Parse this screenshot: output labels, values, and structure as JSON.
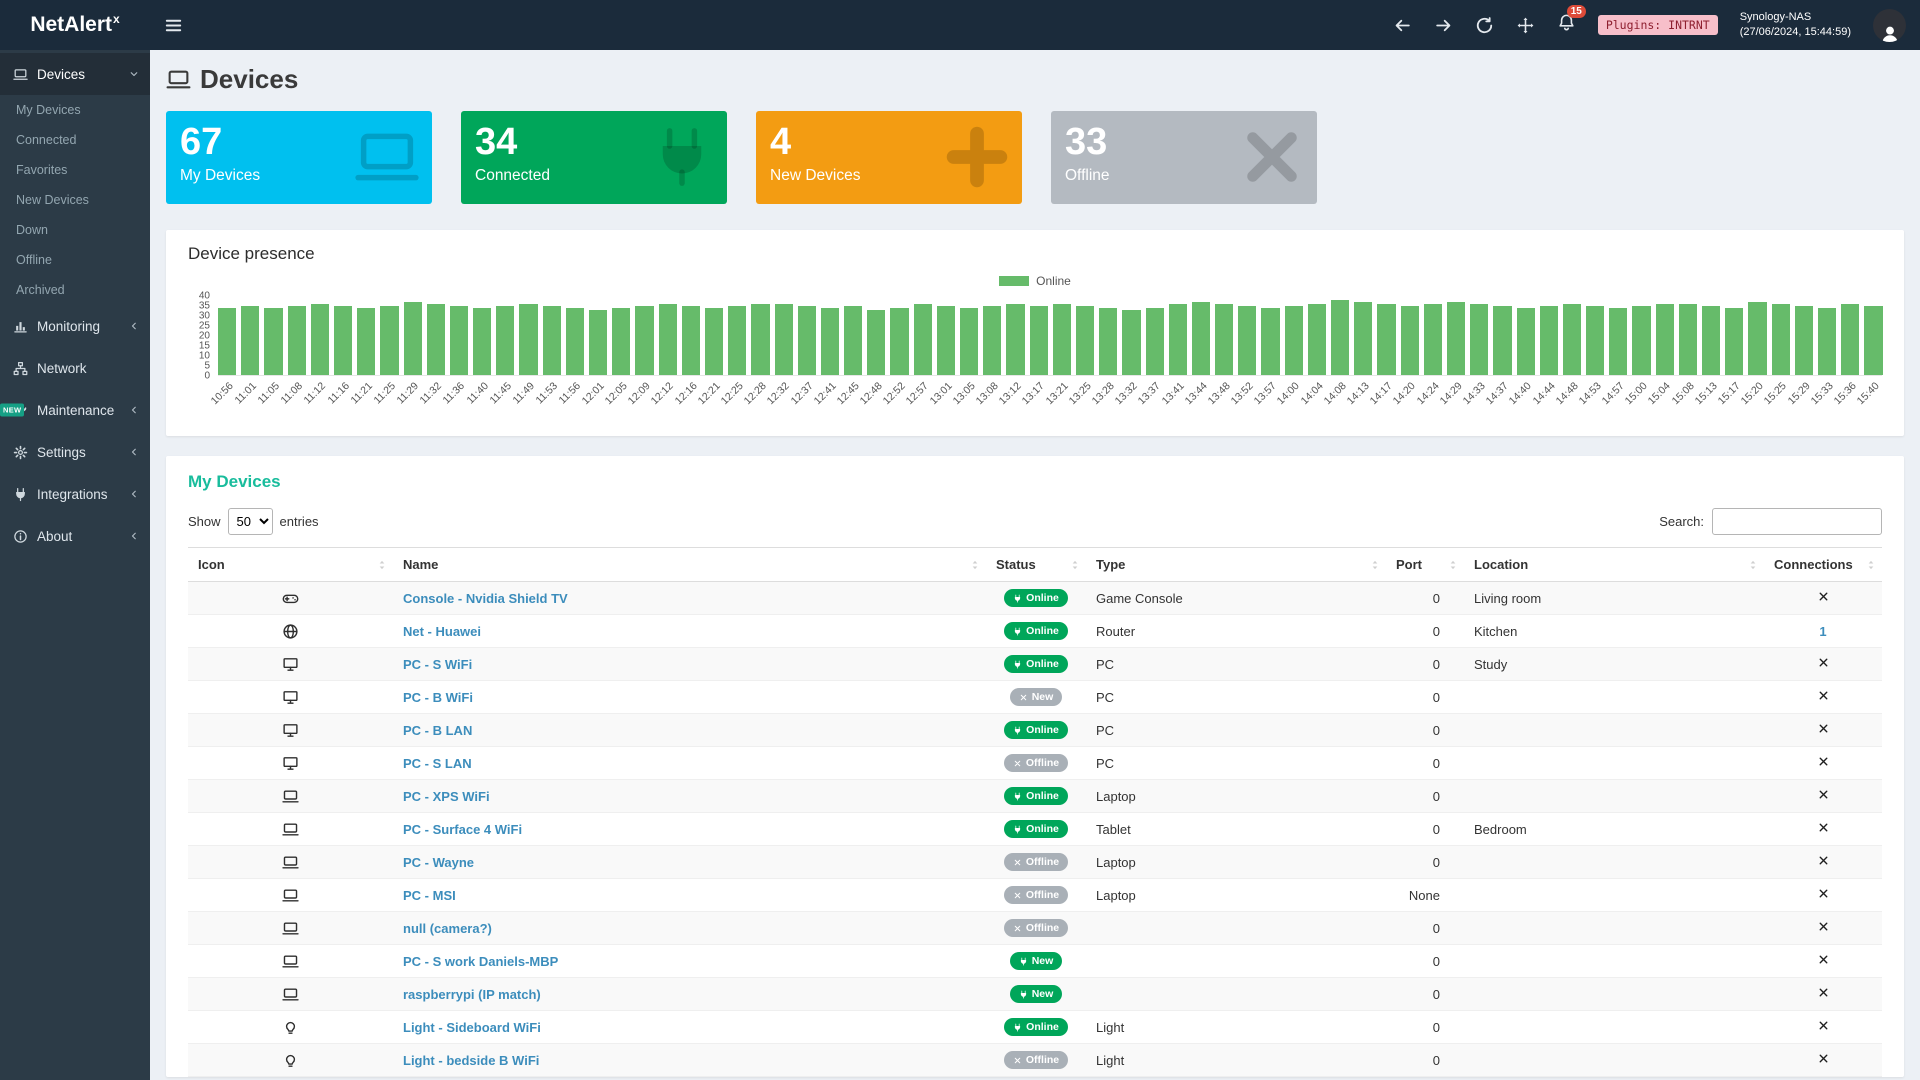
{
  "topbar": {
    "logo_text": "NetAlert",
    "logo_sup": "x",
    "notifications_count": "15",
    "plugins_badge": "Plugins: INTRNT",
    "nas_name": "Synology-NAS",
    "nas_time": "(27/06/2024, 15:44:59)"
  },
  "sidebar": {
    "items": [
      {
        "label": "Devices",
        "icon": "laptop",
        "chevron": "down",
        "active": true,
        "type": "main"
      },
      {
        "label": "My Devices",
        "type": "sub"
      },
      {
        "label": "Connected",
        "type": "sub"
      },
      {
        "label": "Favorites",
        "type": "sub"
      },
      {
        "label": "New Devices",
        "type": "sub"
      },
      {
        "label": "Down",
        "type": "sub"
      },
      {
        "label": "Offline",
        "type": "sub"
      },
      {
        "label": "Archived",
        "type": "sub"
      },
      {
        "label": "Monitoring",
        "icon": "chart",
        "chevron": "left",
        "type": "main"
      },
      {
        "label": "Network",
        "icon": "network",
        "type": "main"
      },
      {
        "label": "Maintenance",
        "icon": "wrench",
        "chevron": "left",
        "type": "main",
        "badge": "NEW"
      },
      {
        "label": "Settings",
        "icon": "gear",
        "chevron": "left",
        "type": "main"
      },
      {
        "label": "Integrations",
        "icon": "plug",
        "chevron": "left",
        "type": "main"
      },
      {
        "label": "About",
        "icon": "info",
        "chevron": "left",
        "type": "main"
      }
    ]
  },
  "page": {
    "title": "Devices"
  },
  "summary_boxes": [
    {
      "value": "67",
      "label": "My Devices",
      "color": "#00c0ef",
      "icon": "laptop"
    },
    {
      "value": "34",
      "label": "Connected",
      "color": "#00a65a",
      "icon": "plug"
    },
    {
      "value": "4",
      "label": "New Devices",
      "color": "#f39c12",
      "icon": "plus"
    },
    {
      "value": "33",
      "label": "Offline",
      "color": "#b4bac1",
      "icon": "x"
    }
  ],
  "presence_panel": {
    "title": "Device presence",
    "legend": "Online"
  },
  "chart_data": {
    "type": "bar",
    "title": "Device presence",
    "legend": [
      "Online"
    ],
    "legend_position": "top-center",
    "bar_color": "#66bb6a",
    "grid": false,
    "ylim": [
      0,
      40
    ],
    "yticks": [
      40,
      35,
      30,
      25,
      20,
      15,
      10,
      5,
      0
    ],
    "categories": [
      "10:56",
      "11:01",
      "11:05",
      "11:08",
      "11:12",
      "11:16",
      "11:21",
      "11:25",
      "11:29",
      "11:32",
      "11:36",
      "11:40",
      "11:45",
      "11:49",
      "11:53",
      "11:56",
      "12:01",
      "12:05",
      "12:09",
      "12:12",
      "12:16",
      "12:21",
      "12:25",
      "12:28",
      "12:32",
      "12:37",
      "12:41",
      "12:45",
      "12:48",
      "12:52",
      "12:57",
      "13:01",
      "13:05",
      "13:08",
      "13:12",
      "13:17",
      "13:21",
      "13:25",
      "13:28",
      "13:32",
      "13:37",
      "13:41",
      "13:44",
      "13:48",
      "13:52",
      "13:57",
      "14:00",
      "14:04",
      "14:08",
      "14:13",
      "14:17",
      "14:20",
      "14:24",
      "14:29",
      "14:33",
      "14:37",
      "14:40",
      "14:44",
      "14:48",
      "14:53",
      "14:57",
      "15:00",
      "15:04",
      "15:08",
      "15:13",
      "15:17",
      "15:20",
      "15:25",
      "15:29",
      "15:33",
      "15:36",
      "15:40"
    ],
    "values": [
      34,
      35,
      34,
      35,
      36,
      35,
      34,
      35,
      37,
      36,
      35,
      34,
      35,
      36,
      35,
      34,
      33,
      34,
      35,
      36,
      35,
      34,
      35,
      36,
      36,
      35,
      34,
      35,
      33,
      34,
      36,
      35,
      34,
      35,
      36,
      35,
      36,
      35,
      34,
      33,
      34,
      36,
      37,
      36,
      35,
      34,
      35,
      36,
      38,
      37,
      36,
      35,
      36,
      37,
      36,
      35,
      34,
      35,
      36,
      35,
      34,
      35,
      36,
      36,
      35,
      34,
      37,
      36,
      35,
      34,
      36,
      35
    ]
  },
  "devices_panel": {
    "title": "My Devices",
    "show_label": "Show",
    "entries_label": "entries",
    "entries_options": [
      "50"
    ],
    "entries_selected": "50",
    "search_label": "Search:",
    "columns": [
      "Icon",
      "Name",
      "Status",
      "Type",
      "Port",
      "Location",
      "Connections"
    ],
    "rows": [
      {
        "icon": "gamepad",
        "name": "Console - Nvidia Shield TV",
        "status": "Online",
        "status_kind": "online",
        "type": "Game Console",
        "port": "0",
        "location": "Living room",
        "connections": "x"
      },
      {
        "icon": "globe",
        "name": "Net - Huawei",
        "status": "Online",
        "status_kind": "online",
        "type": "Router",
        "port": "0",
        "location": "Kitchen",
        "connections": "1"
      },
      {
        "icon": "desktop",
        "name": "PC - S WiFi",
        "status": "Online",
        "status_kind": "online",
        "type": "PC",
        "port": "0",
        "location": "Study",
        "connections": "x"
      },
      {
        "icon": "desktop",
        "name": "PC - B WiFi",
        "status": "New",
        "status_kind": "new-gray",
        "type": "PC",
        "port": "0",
        "location": "",
        "connections": "x"
      },
      {
        "icon": "desktop",
        "name": "PC - B LAN",
        "status": "Online",
        "status_kind": "online",
        "type": "PC",
        "port": "0",
        "location": "",
        "connections": "x"
      },
      {
        "icon": "desktop",
        "name": "PC - S LAN",
        "status": "Offline",
        "status_kind": "offline",
        "type": "PC",
        "port": "0",
        "location": "",
        "connections": "x"
      },
      {
        "icon": "laptop",
        "name": "PC - XPS WiFi",
        "status": "Online",
        "status_kind": "online",
        "type": "Laptop",
        "port": "0",
        "location": "",
        "connections": "x"
      },
      {
        "icon": "laptop",
        "name": "PC - Surface 4 WiFi",
        "status": "Online",
        "status_kind": "online",
        "type": "Tablet",
        "port": "0",
        "location": "Bedroom",
        "connections": "x"
      },
      {
        "icon": "laptop",
        "name": "PC - Wayne",
        "status": "Offline",
        "status_kind": "offline",
        "type": "Laptop",
        "port": "0",
        "location": "",
        "connections": "x"
      },
      {
        "icon": "laptop",
        "name": "PC - MSI",
        "status": "Offline",
        "status_kind": "offline",
        "type": "Laptop",
        "port": "None",
        "location": "",
        "connections": "x"
      },
      {
        "icon": "laptop",
        "name": "null (camera?)",
        "status": "Offline",
        "status_kind": "offline",
        "type": "",
        "port": "0",
        "location": "",
        "connections": "x"
      },
      {
        "icon": "laptop",
        "name": "PC - S work Daniels-MBP",
        "status": "New",
        "status_kind": "new-green",
        "type": "",
        "port": "0",
        "location": "",
        "connections": "x"
      },
      {
        "icon": "laptop",
        "name": "raspberrypi (IP match)",
        "status": "New",
        "status_kind": "new-green",
        "type": "",
        "port": "0",
        "location": "",
        "connections": "x"
      },
      {
        "icon": "bulb",
        "name": "Light - Sideboard WiFi",
        "status": "Online",
        "status_kind": "online",
        "type": "Light",
        "port": "0",
        "location": "",
        "connections": "x"
      },
      {
        "icon": "bulb",
        "name": "Light - bedside B WiFi",
        "status": "Offline",
        "status_kind": "offline",
        "type": "Light",
        "port": "0",
        "location": "",
        "connections": "x"
      }
    ]
  }
}
